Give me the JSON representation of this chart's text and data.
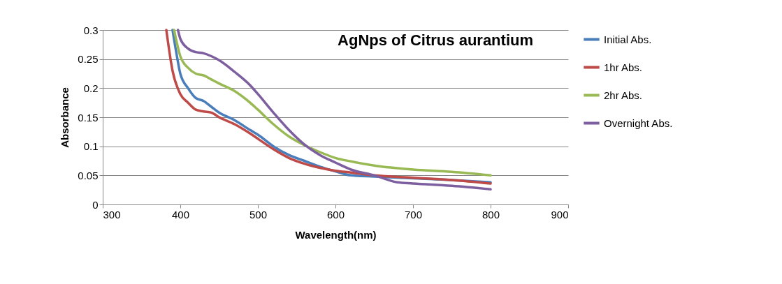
{
  "chart_data": {
    "type": "line",
    "title": "AgNps of Citrus aurantium",
    "xlabel": "Wavelength(nm)",
    "ylabel": "Absorbance",
    "xlim": [
      300,
      900
    ],
    "xticks": [
      300,
      400,
      500,
      600,
      700,
      800,
      900
    ],
    "ylim": [
      0,
      0.3
    ],
    "yticks": [
      0,
      0.05,
      0.1,
      0.15,
      0.2,
      0.25,
      0.3
    ],
    "grid": "y",
    "legend": "right",
    "marker": "none",
    "series": [
      {
        "name": "Initial Abs.",
        "color": "#4a7ebb",
        "x": [
          390,
          395,
          400,
          410,
          420,
          430,
          440,
          450,
          470,
          490,
          500,
          520,
          540,
          560,
          580,
          600,
          620,
          650,
          700,
          750,
          800
        ],
        "values": [
          0.3,
          0.26,
          0.225,
          0.2,
          0.183,
          0.178,
          0.168,
          0.158,
          0.145,
          0.128,
          0.12,
          0.1,
          0.085,
          0.075,
          0.065,
          0.057,
          0.05,
          0.048,
          0.045,
          0.042,
          0.038
        ]
      },
      {
        "name": "1hr Abs.",
        "color": "#be4b48",
        "x": [
          382,
          390,
          400,
          410,
          420,
          430,
          440,
          450,
          470,
          490,
          500,
          520,
          540,
          560,
          580,
          600,
          620,
          650,
          700,
          750,
          800
        ],
        "values": [
          0.3,
          0.23,
          0.19,
          0.175,
          0.163,
          0.16,
          0.158,
          0.15,
          0.138,
          0.122,
          0.113,
          0.095,
          0.08,
          0.07,
          0.063,
          0.058,
          0.055,
          0.05,
          0.046,
          0.042,
          0.036
        ]
      },
      {
        "name": "2hr Abs.",
        "color": "#98b954",
        "x": [
          392,
          400,
          410,
          420,
          430,
          440,
          450,
          470,
          490,
          500,
          520,
          540,
          560,
          580,
          600,
          620,
          650,
          700,
          750,
          800
        ],
        "values": [
          0.3,
          0.255,
          0.235,
          0.225,
          0.222,
          0.215,
          0.208,
          0.195,
          0.175,
          0.163,
          0.138,
          0.117,
          0.102,
          0.09,
          0.08,
          0.074,
          0.067,
          0.06,
          0.056,
          0.05
        ]
      },
      {
        "name": "Overnight Abs.",
        "color": "#7d5fa0",
        "x": [
          397,
          400,
          410,
          420,
          430,
          440,
          450,
          470,
          490,
          500,
          520,
          540,
          560,
          580,
          600,
          620,
          650,
          680,
          700,
          750,
          800
        ],
        "values": [
          0.3,
          0.285,
          0.268,
          0.262,
          0.26,
          0.255,
          0.248,
          0.228,
          0.205,
          0.19,
          0.158,
          0.128,
          0.103,
          0.085,
          0.072,
          0.06,
          0.05,
          0.038,
          0.036,
          0.032,
          0.026
        ]
      }
    ]
  }
}
